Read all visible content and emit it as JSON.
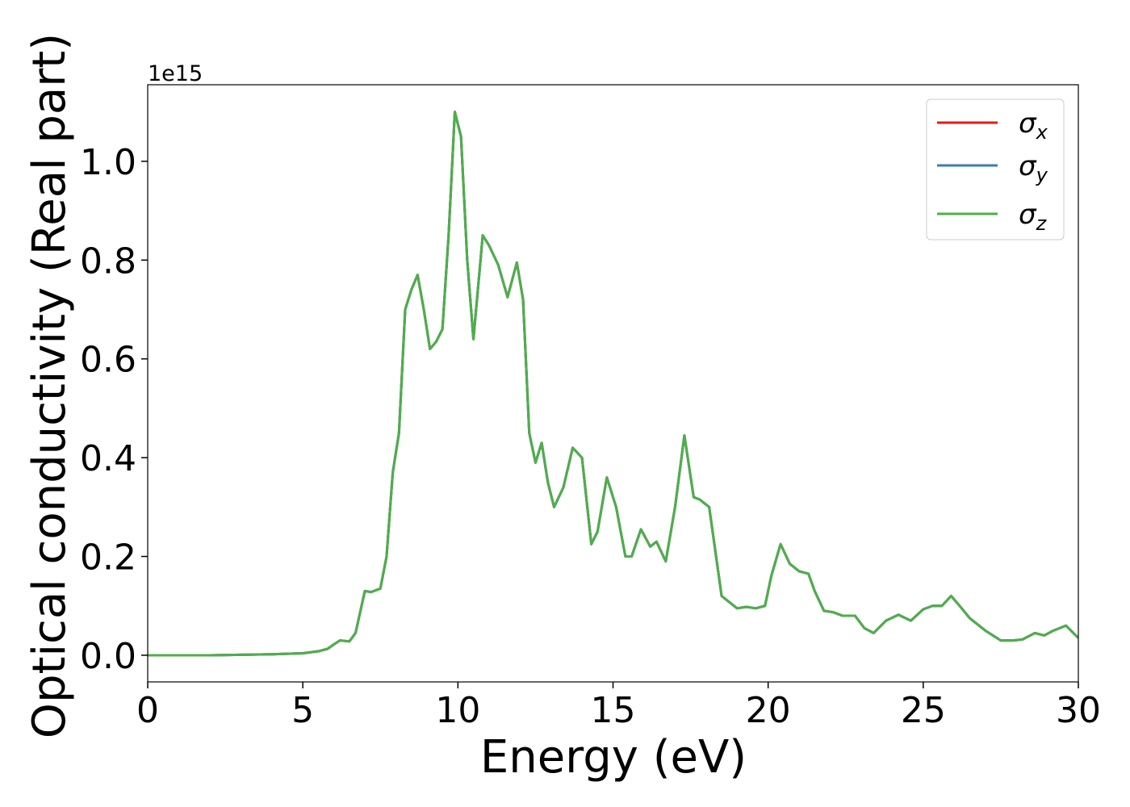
{
  "chart_data": {
    "type": "line",
    "xlabel": "Energy (eV)",
    "ylabel": "Optical conductivity (Real part)",
    "y_offset_label": "1e15",
    "xlim": [
      0,
      30
    ],
    "ylim": [
      -0.054,
      1.155
    ],
    "xticks": [
      0,
      5,
      10,
      15,
      20,
      25,
      30
    ],
    "yticks": [
      {
        "value": 0,
        "label": "0.0"
      },
      {
        "value": 0.2,
        "label": "0.2"
      },
      {
        "value": 0.4,
        "label": "0.4"
      },
      {
        "value": 0.6,
        "label": "0.6"
      },
      {
        "value": 0.8,
        "label": "0.8"
      },
      {
        "value": 1.0,
        "label": "1.0"
      }
    ],
    "grid": false,
    "legend": "upper right",
    "x": [
      0,
      1,
      2,
      3,
      4,
      5,
      5.5,
      5.8,
      6.0,
      6.2,
      6.5,
      6.7,
      7.0,
      7.2,
      7.5,
      7.7,
      7.9,
      8.1,
      8.3,
      8.5,
      8.7,
      8.9,
      9.1,
      9.3,
      9.5,
      9.7,
      9.9,
      10.1,
      10.3,
      10.5,
      10.7,
      10.8,
      11.0,
      11.3,
      11.6,
      11.9,
      12.1,
      12.3,
      12.5,
      12.7,
      12.9,
      13.1,
      13.4,
      13.7,
      14.0,
      14.3,
      14.5,
      14.8,
      15.1,
      15.4,
      15.6,
      15.9,
      16.2,
      16.4,
      16.7,
      17.0,
      17.3,
      17.6,
      17.8,
      18.1,
      18.5,
      18.8,
      19.0,
      19.3,
      19.6,
      19.9,
      20.1,
      20.4,
      20.7,
      21.0,
      21.3,
      21.5,
      21.8,
      22.1,
      22.4,
      22.8,
      23.1,
      23.4,
      23.8,
      24.2,
      24.6,
      25.0,
      25.3,
      25.6,
      25.9,
      26.2,
      26.5,
      27.0,
      27.5,
      27.9,
      28.2,
      28.6,
      28.9,
      29.2,
      29.6,
      30
    ],
    "series": [
      {
        "name": "σx",
        "color": "#e41a1c",
        "values": [
          0,
          0,
          0,
          0.001,
          0.002,
          0.004,
          0.008,
          0.013,
          0.022,
          0.03,
          0.028,
          0.045,
          0.13,
          0.128,
          0.135,
          0.2,
          0.37,
          0.45,
          0.7,
          0.74,
          0.77,
          0.7,
          0.62,
          0.635,
          0.66,
          0.85,
          1.1,
          1.05,
          0.8,
          0.64,
          0.78,
          0.85,
          0.83,
          0.79,
          0.725,
          0.795,
          0.72,
          0.45,
          0.39,
          0.43,
          0.35,
          0.3,
          0.34,
          0.42,
          0.4,
          0.225,
          0.25,
          0.36,
          0.3,
          0.2,
          0.2,
          0.255,
          0.22,
          0.23,
          0.19,
          0.3,
          0.445,
          0.32,
          0.315,
          0.3,
          0.12,
          0.105,
          0.095,
          0.098,
          0.095,
          0.1,
          0.16,
          0.225,
          0.185,
          0.17,
          0.165,
          0.13,
          0.09,
          0.087,
          0.08,
          0.08,
          0.055,
          0.045,
          0.07,
          0.082,
          0.07,
          0.093,
          0.1,
          0.1,
          0.12,
          0.098,
          0.075,
          0.05,
          0.03,
          0.03,
          0.032,
          0.045,
          0.04,
          0.05,
          0.06,
          0.035
        ]
      },
      {
        "name": "σy",
        "color": "#377eb8",
        "values": [
          0,
          0,
          0,
          0.001,
          0.002,
          0.004,
          0.008,
          0.013,
          0.022,
          0.03,
          0.028,
          0.045,
          0.13,
          0.128,
          0.135,
          0.2,
          0.37,
          0.45,
          0.7,
          0.74,
          0.77,
          0.7,
          0.62,
          0.635,
          0.66,
          0.85,
          1.1,
          1.05,
          0.8,
          0.64,
          0.78,
          0.85,
          0.83,
          0.79,
          0.725,
          0.795,
          0.72,
          0.45,
          0.39,
          0.43,
          0.35,
          0.3,
          0.34,
          0.42,
          0.4,
          0.225,
          0.25,
          0.36,
          0.3,
          0.2,
          0.2,
          0.255,
          0.22,
          0.23,
          0.19,
          0.3,
          0.445,
          0.32,
          0.315,
          0.3,
          0.12,
          0.105,
          0.095,
          0.098,
          0.095,
          0.1,
          0.16,
          0.225,
          0.185,
          0.17,
          0.165,
          0.13,
          0.09,
          0.087,
          0.08,
          0.08,
          0.055,
          0.045,
          0.07,
          0.082,
          0.07,
          0.093,
          0.1,
          0.1,
          0.12,
          0.098,
          0.075,
          0.05,
          0.03,
          0.03,
          0.032,
          0.045,
          0.04,
          0.05,
          0.06,
          0.035
        ]
      },
      {
        "name": "σz",
        "color": "#4daf4a",
        "values": [
          0,
          0,
          0,
          0.001,
          0.002,
          0.004,
          0.008,
          0.013,
          0.022,
          0.03,
          0.028,
          0.045,
          0.13,
          0.128,
          0.135,
          0.2,
          0.37,
          0.45,
          0.7,
          0.74,
          0.77,
          0.7,
          0.62,
          0.635,
          0.66,
          0.85,
          1.1,
          1.05,
          0.8,
          0.64,
          0.78,
          0.85,
          0.83,
          0.79,
          0.725,
          0.795,
          0.72,
          0.45,
          0.39,
          0.43,
          0.35,
          0.3,
          0.34,
          0.42,
          0.4,
          0.225,
          0.25,
          0.36,
          0.3,
          0.2,
          0.2,
          0.255,
          0.22,
          0.23,
          0.19,
          0.3,
          0.445,
          0.32,
          0.315,
          0.3,
          0.12,
          0.105,
          0.095,
          0.098,
          0.095,
          0.1,
          0.16,
          0.225,
          0.185,
          0.17,
          0.165,
          0.13,
          0.09,
          0.087,
          0.08,
          0.08,
          0.055,
          0.045,
          0.07,
          0.082,
          0.07,
          0.093,
          0.1,
          0.1,
          0.12,
          0.098,
          0.075,
          0.05,
          0.03,
          0.03,
          0.032,
          0.045,
          0.04,
          0.05,
          0.06,
          0.035
        ]
      }
    ]
  }
}
